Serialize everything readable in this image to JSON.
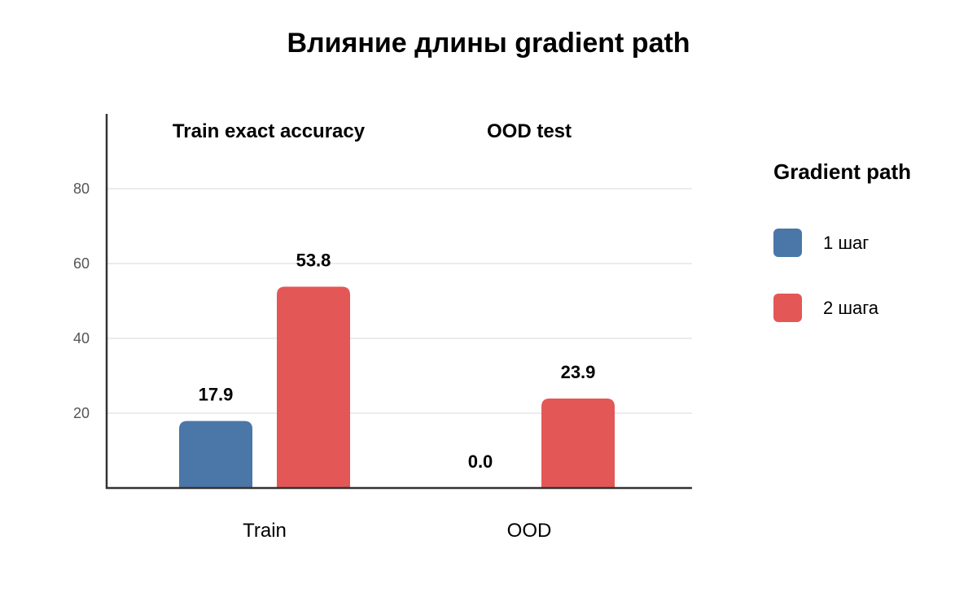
{
  "chart_data": {
    "type": "bar",
    "title": "Влияние длины gradient path",
    "categories": [
      "Train",
      "OOD"
    ],
    "panel_titles": [
      "Train exact accuracy",
      "OOD test"
    ],
    "series": [
      {
        "name": "1 шаг",
        "color": "#4a76a8",
        "values": [
          17.9,
          0.0
        ],
        "value_labels": [
          "17.9",
          "0.0"
        ]
      },
      {
        "name": "2 шага",
        "color": "#e35757",
        "values": [
          53.8,
          23.9
        ],
        "value_labels": [
          "53.8",
          "23.9"
        ]
      }
    ],
    "yticks": [
      20,
      40,
      60,
      80
    ],
    "ytick_labels": [
      "20",
      "40",
      "60",
      "80"
    ],
    "ylim": [
      0,
      100
    ],
    "grid": true,
    "xlabel": "",
    "ylabel": "",
    "legend": {
      "title": "Gradient path",
      "position": "right"
    }
  }
}
